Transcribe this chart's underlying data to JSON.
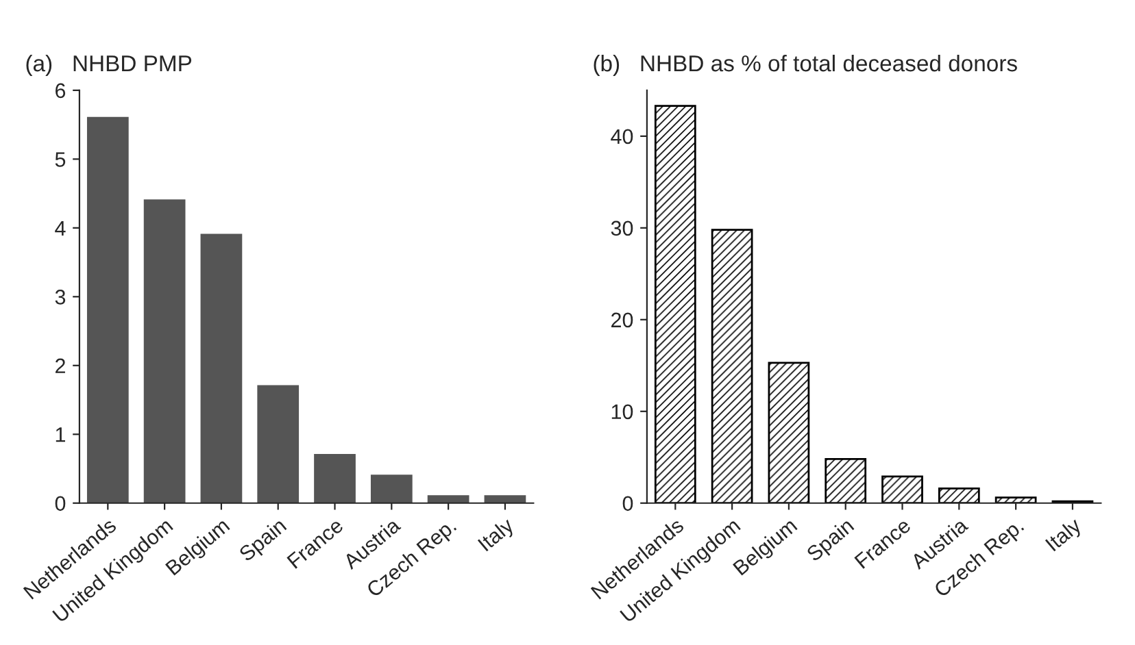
{
  "chart_data": [
    {
      "type": "bar",
      "title": "(a)   NHBD PMP",
      "categories": [
        "Netherlands",
        "United Kingdom",
        "Belgium",
        "Spain",
        "France",
        "Austria",
        "Czech Rep.",
        "Italy"
      ],
      "values": [
        5.6,
        4.4,
        3.9,
        1.7,
        0.7,
        0.4,
        0.1,
        0.1
      ],
      "color": "#555555",
      "ylim": [
        0,
        6
      ],
      "yticks": [
        0,
        1,
        2,
        3,
        4,
        5,
        6
      ],
      "grid": false,
      "legend": false
    },
    {
      "type": "bar",
      "title": "(b)   NHBD as % of total deceased donors",
      "categories": [
        "Netherlands",
        "United Kingdom",
        "Belgium",
        "Spain",
        "France",
        "Austria",
        "Czech Rep.",
        "Italy"
      ],
      "values": [
        43.3,
        29.8,
        15.3,
        4.8,
        2.9,
        1.6,
        0.6,
        0.2
      ],
      "color": "#000000",
      "ylim": [
        0,
        45
      ],
      "yticks": [
        0,
        10,
        20,
        30,
        40
      ],
      "grid": false,
      "legend": false
    }
  ]
}
